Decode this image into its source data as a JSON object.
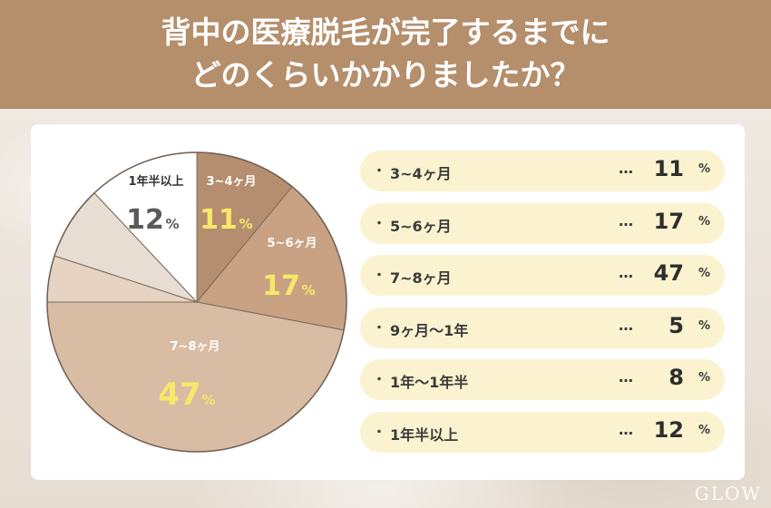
{
  "header": {
    "title_line1": "背中の医療脱毛が完了するまでに",
    "title_line2": "どのくらいかかりましたか？"
  },
  "colors": {
    "header_bg": "#b58e6b",
    "legend_bg": "#fbf3cf",
    "label_highlight": "#f7e86a"
  },
  "chart_data": {
    "type": "pie",
    "unit": "%",
    "slices": [
      {
        "label": "3~4ヶ月",
        "value": 11,
        "color": "#b48e6f"
      },
      {
        "label": "5~6ヶ月",
        "value": 17,
        "color": "#c9a283"
      },
      {
        "label": "7~8ヶ月",
        "value": 47,
        "color": "#d8bca3"
      },
      {
        "label": "9ヶ月〜1年",
        "value": 5,
        "color": "#e6d3c2"
      },
      {
        "label": "1年〜1年半",
        "value": 8,
        "color": "#e7ddd3"
      },
      {
        "label": "1年半以上",
        "value": 12,
        "color": "#ffffff"
      }
    ],
    "pie_labels": [
      {
        "label": "3~4ヶ月",
        "value": "11",
        "unit": "%"
      },
      {
        "label": "5~6ヶ月",
        "value": "17",
        "unit": "%"
      },
      {
        "label": "7~8ヶ月",
        "value": "47",
        "unit": "%"
      },
      {
        "label": "1年半以上",
        "value": "12",
        "unit": "%"
      }
    ]
  },
  "legend": {
    "bullet": "・",
    "dots": "…",
    "unit": "%",
    "rows": [
      {
        "label": "3~4ヶ月",
        "value": "11"
      },
      {
        "label": "5~6ヶ月",
        "value": "17"
      },
      {
        "label": "7~8ヶ月",
        "value": "47"
      },
      {
        "label": "9ヶ月〜1年",
        "value": "5"
      },
      {
        "label": "1年〜1年半",
        "value": "8"
      },
      {
        "label": "1年半以上",
        "value": "12"
      }
    ]
  },
  "logo": {
    "text": "GLOW"
  }
}
